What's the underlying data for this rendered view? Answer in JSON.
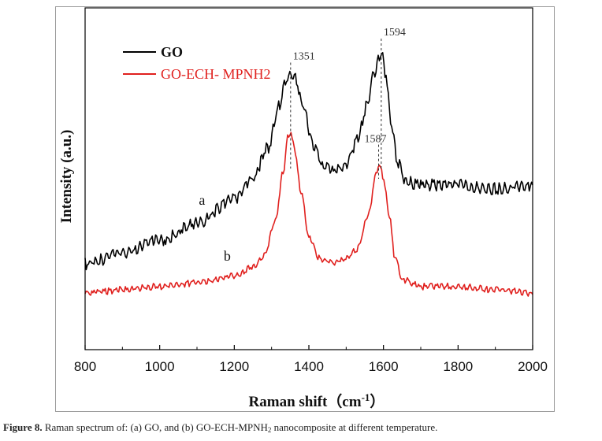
{
  "chart_data": {
    "type": "line",
    "xlabel": "Raman shift（cm",
    "xlabel_sup": "-1",
    "xlabel_close": "）",
    "ylabel": "Intensity (a.u.)",
    "xlim": [
      800,
      2000
    ],
    "x_ticks": [
      "800",
      "1000",
      "1200",
      "1400",
      "1600",
      "1800",
      "2000"
    ],
    "grid": false,
    "legend_position": "top-left",
    "series": [
      {
        "name": "GO",
        "label": "a",
        "color": "#000000",
        "points": [
          [
            800,
            0.26
          ],
          [
            900,
            0.29
          ],
          [
            1000,
            0.33
          ],
          [
            1100,
            0.38
          ],
          [
            1200,
            0.45
          ],
          [
            1250,
            0.51
          ],
          [
            1290,
            0.6
          ],
          [
            1320,
            0.72
          ],
          [
            1340,
            0.8
          ],
          [
            1351,
            0.82
          ],
          [
            1365,
            0.8
          ],
          [
            1385,
            0.72
          ],
          [
            1410,
            0.61
          ],
          [
            1440,
            0.54
          ],
          [
            1470,
            0.53
          ],
          [
            1500,
            0.55
          ],
          [
            1530,
            0.62
          ],
          [
            1555,
            0.72
          ],
          [
            1575,
            0.82
          ],
          [
            1590,
            0.87
          ],
          [
            1594,
            0.88
          ],
          [
            1605,
            0.82
          ],
          [
            1620,
            0.68
          ],
          [
            1640,
            0.55
          ],
          [
            1660,
            0.5
          ],
          [
            1700,
            0.49
          ],
          [
            1800,
            0.49
          ],
          [
            1900,
            0.48
          ],
          [
            2000,
            0.49
          ]
        ]
      },
      {
        "name": "GO-ECH- MPNH2",
        "label": "b",
        "color": "#e0201e",
        "points": [
          [
            800,
            0.17
          ],
          [
            900,
            0.18
          ],
          [
            1000,
            0.19
          ],
          [
            1100,
            0.2
          ],
          [
            1200,
            0.22
          ],
          [
            1250,
            0.25
          ],
          [
            1280,
            0.28
          ],
          [
            1310,
            0.38
          ],
          [
            1330,
            0.52
          ],
          [
            1345,
            0.63
          ],
          [
            1351,
            0.64
          ],
          [
            1360,
            0.6
          ],
          [
            1380,
            0.46
          ],
          [
            1400,
            0.33
          ],
          [
            1430,
            0.27
          ],
          [
            1460,
            0.26
          ],
          [
            1500,
            0.27
          ],
          [
            1530,
            0.3
          ],
          [
            1560,
            0.4
          ],
          [
            1580,
            0.52
          ],
          [
            1587,
            0.55
          ],
          [
            1600,
            0.51
          ],
          [
            1615,
            0.4
          ],
          [
            1630,
            0.28
          ],
          [
            1650,
            0.21
          ],
          [
            1700,
            0.19
          ],
          [
            1800,
            0.19
          ],
          [
            1900,
            0.18
          ],
          [
            2000,
            0.17
          ]
        ]
      }
    ],
    "annotations": [
      {
        "text": "1351",
        "x": 1351
      },
      {
        "text": "1594",
        "x": 1594
      },
      {
        "text": "1587",
        "x": 1587
      }
    ]
  },
  "caption": {
    "label": "Figure 8.",
    "text_before": " Raman spectrum of: (a) GO, and (b) GO-ECH-MPNH",
    "sub": "2",
    "text_after": " nanocomposite at different temperature."
  }
}
